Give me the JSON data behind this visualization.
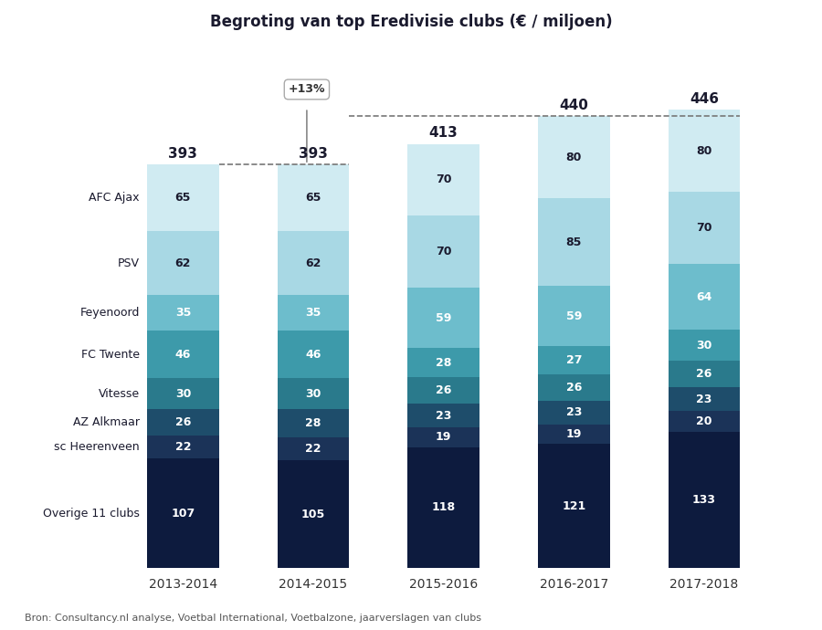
{
  "title": "Begroting van top Eredivisie clubs (€ / miljoen)",
  "source": "Bron: Consultancy.nl analyse, Voetbal International, Voetbalzone, jaarverslagen van clubs",
  "years": [
    "2013-2014",
    "2014-2015",
    "2015-2016",
    "2016-2017",
    "2017-2018"
  ],
  "totals": [
    393,
    393,
    413,
    440,
    446
  ],
  "show_total_on_bar": [
    true,
    true,
    true,
    false,
    false
  ],
  "segments": {
    "Overige 11 clubs": [
      107,
      105,
      118,
      121,
      133
    ],
    "sc Heerenveen": [
      22,
      22,
      19,
      19,
      20
    ],
    "AZ Alkmaar": [
      26,
      28,
      23,
      23,
      23
    ],
    "Vitesse": [
      30,
      30,
      26,
      26,
      26
    ],
    "FC Twente": [
      46,
      46,
      28,
      27,
      30
    ],
    "Feyenoord": [
      35,
      35,
      59,
      59,
      64
    ],
    "PSV": [
      62,
      62,
      70,
      85,
      70
    ],
    "AFC Ajax": [
      65,
      65,
      70,
      80,
      80
    ]
  },
  "colors": {
    "Overige 11 clubs": "#0d1b3e",
    "sc Heerenveen": "#1b3358",
    "AZ Alkmaar": "#1e4d6b",
    "Vitesse": "#2a7a8c",
    "FC Twente": "#3d9aaa",
    "Feyenoord": "#6dbdcc",
    "PSV": "#a8d8e4",
    "AFC Ajax": "#d0ebf2"
  },
  "label_colors": {
    "Overige 11 clubs": "white",
    "sc Heerenveen": "white",
    "AZ Alkmaar": "white",
    "Vitesse": "white",
    "FC Twente": "white",
    "Feyenoord": "white",
    "PSV": "#1a1a2e",
    "AFC Ajax": "#1a1a2e"
  },
  "bar_width": 0.55,
  "background_color": "#ffffff",
  "dashed_line_color": "#777777",
  "total_fontsize": 11,
  "label_fontsize": 9,
  "club_label_fontsize": 9,
  "annotation_fontsize": 9,
  "source_fontsize": 8
}
